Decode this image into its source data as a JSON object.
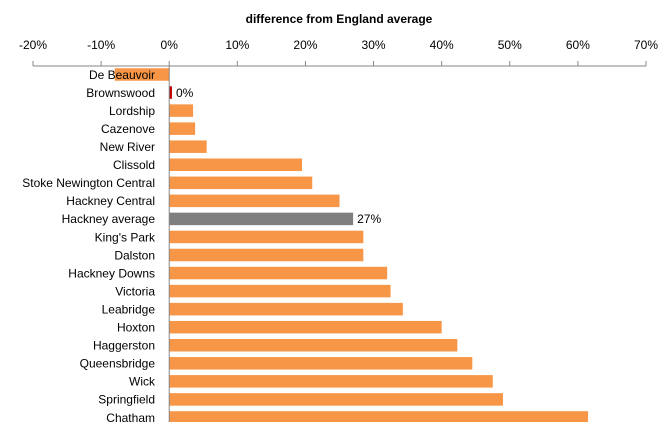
{
  "chart_data": {
    "type": "bar",
    "orientation": "horizontal",
    "title": "difference from England  average",
    "xlabel": "",
    "ylabel": "",
    "xlim": [
      -20,
      70
    ],
    "x_axis_position": "top",
    "grid": false,
    "legend": "none",
    "x_ticks": [
      "-20%",
      "-10%",
      "0%",
      "10%",
      "20%",
      "30%",
      "40%",
      "50%",
      "60%",
      "70%"
    ],
    "categories": [
      "De Beauvoir",
      "Brownswood",
      "Lordship",
      "Cazenove",
      "New River",
      "Clissold",
      "Stoke Newington Central",
      "Hackney Central",
      "Hackney average",
      "King's Park",
      "Dalston",
      "Hackney Downs",
      "Victoria",
      "Leabridge",
      "Hoxton",
      "Haggerston",
      "Queensbridge",
      "Wick",
      "Springfield",
      "Chatham"
    ],
    "values": [
      -8,
      0.4,
      3.5,
      3.8,
      5.5,
      19.5,
      21,
      25,
      27,
      28.5,
      28.5,
      32,
      32.5,
      34.3,
      40,
      42.3,
      44.5,
      47.5,
      49,
      61.5
    ],
    "bar_colors": {
      "default": "#f79646",
      "Brownswood": "#c00000",
      "Hackney average": "#7f7f7f"
    },
    "data_labels": [
      {
        "category": "Brownswood",
        "text": "0%"
      },
      {
        "category": "Hackney average",
        "text": "27%"
      }
    ]
  }
}
